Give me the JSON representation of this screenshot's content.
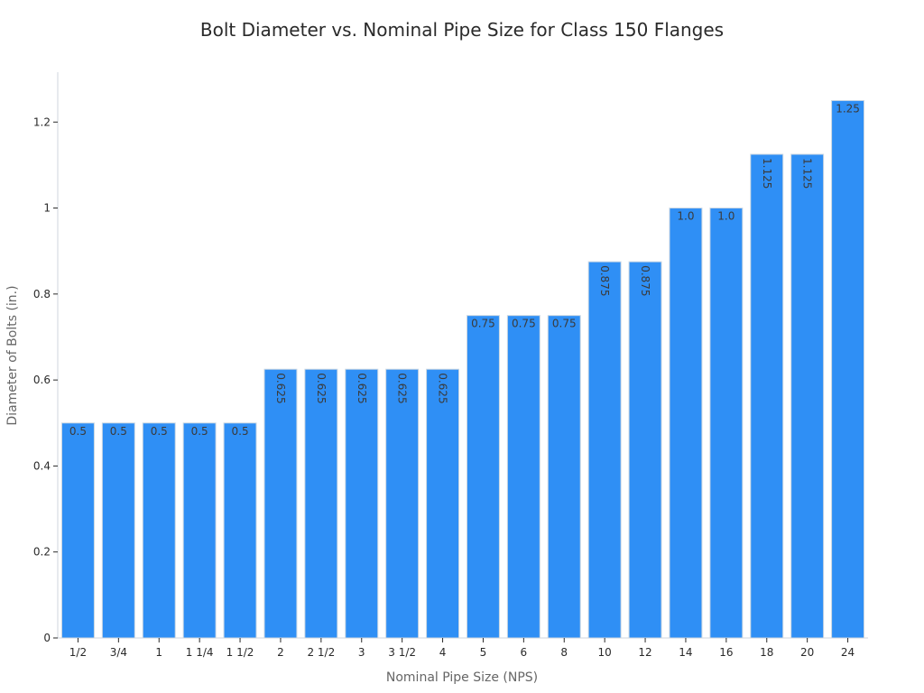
{
  "chart_data": {
    "type": "bar",
    "title": "Bolt Diameter vs. Nominal Pipe Size for Class 150 Flanges",
    "xlabel": "Nominal Pipe Size (NPS)",
    "ylabel": "Diameter of Bolts (in.)",
    "categories": [
      "1/2",
      "3/4",
      "1",
      "1 1/4",
      "1 1/2",
      "2",
      "2 1/2",
      "3",
      "3 1/2",
      "4",
      "5",
      "6",
      "8",
      "10",
      "12",
      "14",
      "16",
      "18",
      "20",
      "24"
    ],
    "values": [
      0.5,
      0.5,
      0.5,
      0.5,
      0.5,
      0.625,
      0.625,
      0.625,
      0.625,
      0.625,
      0.75,
      0.75,
      0.75,
      0.875,
      0.875,
      1.0,
      1.0,
      1.125,
      1.125,
      1.25
    ],
    "data_labels": [
      "0.5",
      "0.5",
      "0.5",
      "0.5",
      "0.5",
      "0.625",
      "0.625",
      "0.625",
      "0.625",
      "0.625",
      "0.75",
      "0.75",
      "0.75",
      "0.875",
      "0.875",
      "1.0",
      "1.0",
      "1.125",
      "1.125",
      "1.25"
    ],
    "yticks": [
      0,
      0.2,
      0.4,
      0.6,
      0.8,
      1,
      1.2
    ],
    "ytick_labels": [
      "0",
      "0.2",
      "0.4",
      "0.6",
      "0.8",
      "1",
      "1.2"
    ],
    "ylim": [
      0,
      1.316
    ],
    "grid": false,
    "legend": "none",
    "bar_color": "#2f8ff5",
    "bar_edge_color": "#c9d6e2"
  }
}
